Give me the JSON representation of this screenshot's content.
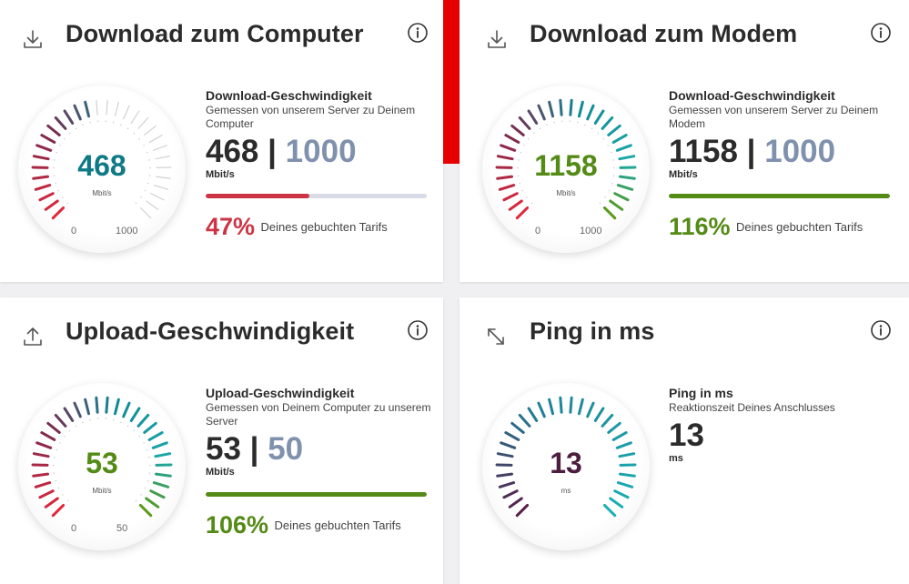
{
  "colors": {
    "red": "#cd3546",
    "green": "#548a16",
    "teal": "#0e7a86",
    "plum": "#4d1d3f",
    "booked": "#7f91ad",
    "accent_red": "#e60000"
  },
  "cards": {
    "download_computer": {
      "title": "Download zum Computer",
      "icon": "download-icon",
      "gauge": {
        "value": "468",
        "unit": "Mbit/s",
        "min": "0",
        "max": "1000"
      },
      "detail_title": "Download-Geschwindigkeit",
      "detail_subtitle": "Gemessen von unserem Server zu Deinem Computer",
      "measured": "468",
      "separator": "|",
      "booked": "1000",
      "unit": "Mbit/s",
      "progress_fraction": 0.47,
      "percent": "47%",
      "percent_label": "Deines gebuchten Tarifs"
    },
    "download_modem": {
      "title": "Download zum Modem",
      "icon": "download-icon",
      "gauge": {
        "value": "1158",
        "unit": "Mbit/s",
        "min": "0",
        "max": "1000"
      },
      "detail_title": "Download-Geschwindigkeit",
      "detail_subtitle": "Gemessen von unserem Server zu Deinem Modem",
      "measured": "1158",
      "separator": "|",
      "booked": "1000",
      "unit": "Mbit/s",
      "progress_fraction": 1.0,
      "percent": "116%",
      "percent_label": "Deines gebuchten Tarifs"
    },
    "upload": {
      "title": "Upload-Geschwindigkeit",
      "icon": "upload-icon",
      "gauge": {
        "value": "53",
        "unit": "Mbit/s",
        "min": "0",
        "max": "50"
      },
      "detail_title": "Upload-Geschwindigkeit",
      "detail_subtitle": "Gemessen von Deinem Computer zu unserem Server",
      "measured": "53",
      "separator": "|",
      "booked": "50",
      "unit": "Mbit/s",
      "progress_fraction": 1.0,
      "percent": "106%",
      "percent_label": "Deines gebuchten Tarifs"
    },
    "ping": {
      "title": "Ping in ms",
      "icon": "ping-arrows-icon",
      "gauge": {
        "value": "13",
        "unit": "ms"
      },
      "detail_title": "Ping in ms",
      "detail_subtitle": "Reaktionszeit Deines Anschlusses",
      "measured": "13",
      "unit": "ms"
    }
  }
}
